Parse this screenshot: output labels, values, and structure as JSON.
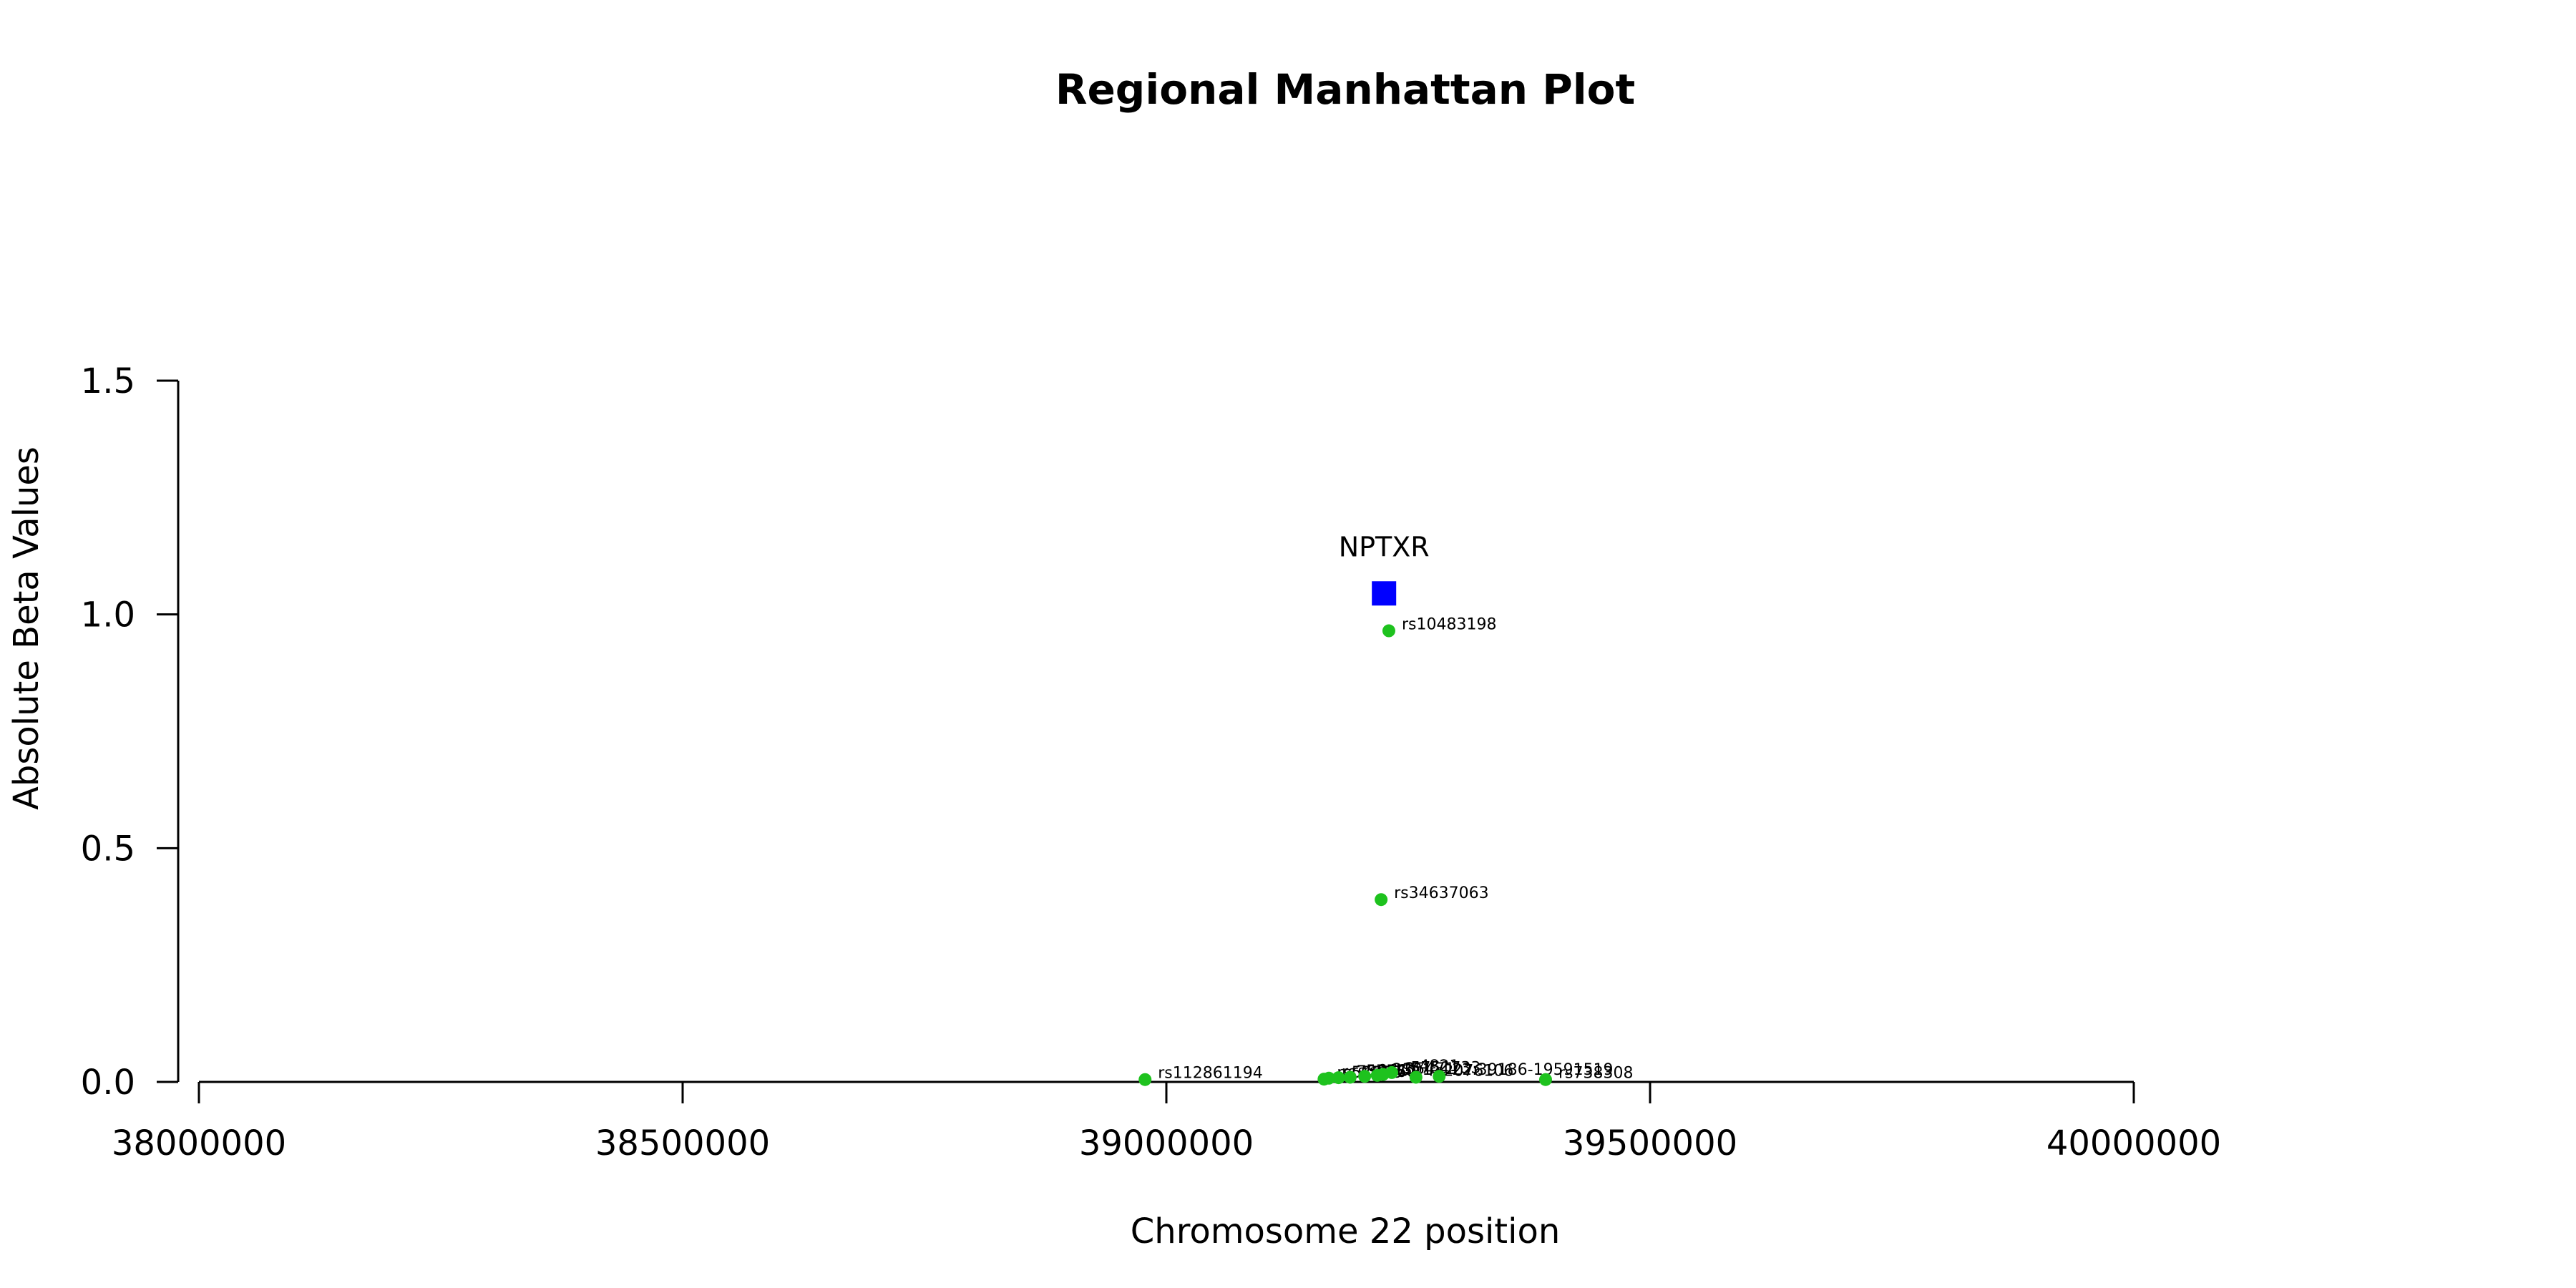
{
  "chart_data": {
    "type": "scatter",
    "title": "Regional Manhattan Plot",
    "xlabel": "Chromosome 22 position",
    "ylabel": "Absolute Beta Values",
    "xlim": [
      38000000,
      40000000
    ],
    "ylim": [
      0,
      1.5
    ],
    "x_ticks": [
      "38000000",
      "38500000",
      "39000000",
      "39500000",
      "40000000"
    ],
    "y_ticks": [
      "0.0",
      "0.5",
      "1.0",
      "1.5"
    ],
    "grid": false,
    "colors": {
      "snp": "#1ec21e",
      "gene": "#0000ff"
    },
    "gene": {
      "name": "NPTXR",
      "x": 39225000,
      "y": 1.045
    },
    "series": [
      {
        "marker": "circle",
        "points": [
          {
            "label": "rs10483198",
            "x": 39230000,
            "y": 0.965
          },
          {
            "label": "rs34637063",
            "x": 39222000,
            "y": 0.39
          },
          {
            "label": "rs112861194",
            "x": 38978000,
            "y": 0.005
          },
          {
            "label": "rs57598",
            "x": 39163000,
            "y": 0.006
          },
          {
            "label": "rs739260",
            "x": 39168000,
            "y": 0.008
          },
          {
            "label": "rs5757",
            "x": 39178000,
            "y": 0.009
          },
          {
            "label": "rs9611",
            "x": 39190000,
            "y": 0.01
          },
          {
            "label": "rs2301",
            "x": 39205000,
            "y": 0.012
          },
          {
            "label": "rs35471",
            "x": 39218000,
            "y": 0.014
          },
          {
            "label": "rs5751733",
            "x": 39224000,
            "y": 0.016
          },
          {
            "label": "rs4821",
            "x": 39233000,
            "y": 0.02
          },
          {
            "label": "rs2076106",
            "x": 39258000,
            "y": 0.01
          },
          {
            "label": "22:39186-19591519",
            "x": 39282000,
            "y": 0.012
          },
          {
            "label": "rs738308",
            "x": 39392000,
            "y": 0.005
          }
        ]
      }
    ]
  }
}
